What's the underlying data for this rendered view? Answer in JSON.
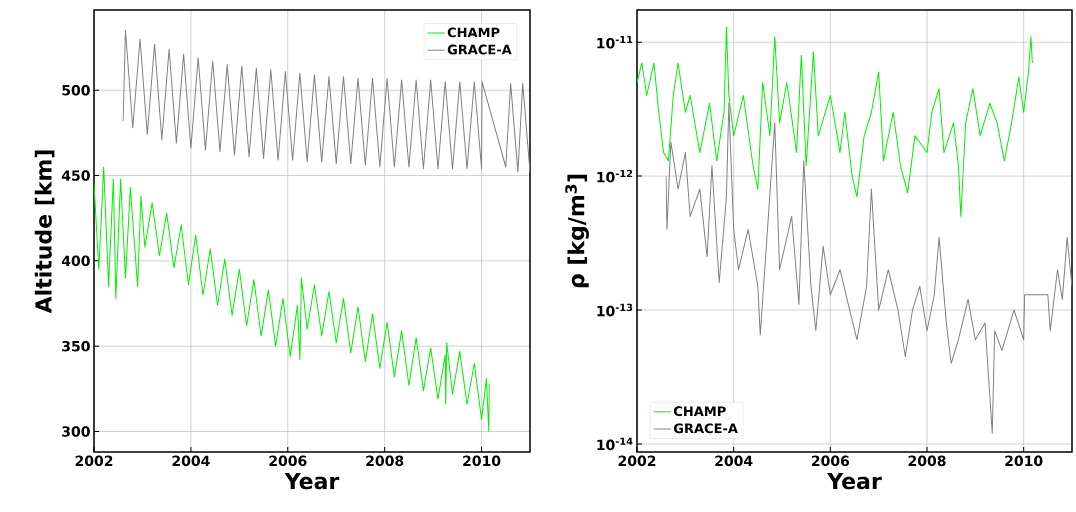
{
  "chart_data": [
    {
      "type": "line",
      "xlabel": "Year",
      "ylabel": "Altitude [km]",
      "xlim": [
        2002,
        2011
      ],
      "ylim": [
        288,
        547
      ],
      "xticks": [
        2002,
        2004,
        2006,
        2008,
        2010
      ],
      "yticks": [
        300,
        350,
        400,
        450,
        500
      ],
      "grid": true,
      "legend": "top right",
      "series": [
        {
          "name": "CHAMP",
          "color": "#00f000",
          "x": [
            2002.0,
            2002.1,
            2002.2,
            2002.3,
            2002.4,
            2002.45,
            2002.55,
            2002.65,
            2002.75,
            2002.9,
            2002.97,
            2003.05,
            2003.2,
            2003.35,
            2003.5,
            2003.65,
            2003.8,
            2003.95,
            2004.1,
            2004.25,
            2004.4,
            2004.55,
            2004.7,
            2004.85,
            2005.0,
            2005.15,
            2005.3,
            2005.45,
            2005.6,
            2005.75,
            2005.9,
            2006.05,
            2006.2,
            2006.25,
            2006.28,
            2006.4,
            2006.55,
            2006.7,
            2006.85,
            2007.0,
            2007.15,
            2007.3,
            2007.45,
            2007.6,
            2007.75,
            2007.9,
            2008.05,
            2008.2,
            2008.35,
            2008.5,
            2008.65,
            2008.8,
            2008.95,
            2009.1,
            2009.25,
            2009.26,
            2009.28,
            2009.4,
            2009.55,
            2009.7,
            2009.85,
            2010.0,
            2010.1,
            2010.15,
            2010.16
          ],
          "values": [
            445,
            395,
            455,
            385,
            448,
            378,
            448,
            390,
            443,
            385,
            438,
            408,
            434,
            403,
            428,
            396,
            421,
            386,
            415,
            380,
            407,
            374,
            401,
            368,
            395,
            362,
            389,
            356,
            383,
            350,
            378,
            344,
            374,
            342,
            390,
            360,
            386,
            356,
            382,
            352,
            378,
            346,
            373,
            341,
            369,
            337,
            364,
            332,
            359,
            327,
            355,
            324,
            349,
            319,
            345,
            316,
            352,
            322,
            347,
            316,
            340,
            307,
            331,
            300,
            328
          ]
        },
        {
          "name": "GRACE-A",
          "color": "#808080",
          "x": [
            2002.6,
            2002.65,
            2002.8,
            2002.95,
            2003.1,
            2003.25,
            2003.4,
            2003.55,
            2003.7,
            2003.85,
            2004.0,
            2004.15,
            2004.3,
            2004.45,
            2004.6,
            2004.75,
            2004.9,
            2005.05,
            2005.2,
            2005.35,
            2005.5,
            2005.65,
            2005.8,
            2005.95,
            2006.1,
            2006.25,
            2006.4,
            2006.55,
            2006.7,
            2006.85,
            2007.0,
            2007.15,
            2007.3,
            2007.45,
            2007.6,
            2007.75,
            2007.9,
            2008.05,
            2008.2,
            2008.35,
            2008.5,
            2008.65,
            2008.8,
            2008.95,
            2009.1,
            2009.25,
            2009.4,
            2009.55,
            2009.7,
            2009.85,
            2010.0,
            2010.01,
            2010.5,
            2010.6,
            2010.75,
            2010.85,
            2011.0
          ],
          "values": [
            482,
            535,
            478,
            530,
            474,
            527,
            471,
            524,
            469,
            521,
            466,
            519,
            465,
            517,
            464,
            515,
            462,
            514,
            461,
            513,
            460,
            512,
            459,
            511,
            459,
            510,
            458,
            509,
            458,
            508,
            457,
            508,
            457,
            507,
            456,
            507,
            455,
            507,
            455,
            506,
            455,
            506,
            454,
            506,
            454,
            505,
            454,
            505,
            454,
            505,
            454,
            505,
            455,
            504,
            452,
            504,
            452
          ]
        }
      ]
    },
    {
      "type": "line",
      "xlabel": "Year",
      "ylabel": "ρ [kg/m$^{3}$]",
      "log": "y",
      "xlim": [
        2002,
        2011
      ],
      "ylim": [
        8.7e-15,
        1.74e-11
      ],
      "xticks": [
        2002,
        2004,
        2006,
        2008,
        2010
      ],
      "yticks": [
        {
          "value": 1e-14,
          "label": "10$^{-14}$"
        },
        {
          "value": 1e-13,
          "label": "10$^{-13}$"
        },
        {
          "value": 1e-12,
          "label": "10$^{-12}$"
        },
        {
          "value": 1e-11,
          "label": "10$^{-11}$"
        }
      ],
      "grid": true,
      "legend": "bottom left",
      "series": [
        {
          "name": "CHAMP",
          "color": "#00f000",
          "x": [
            2002.0,
            2002.1,
            2002.2,
            2002.35,
            2002.45,
            2002.55,
            2002.65,
            2002.75,
            2002.85,
            2003.0,
            2003.1,
            2003.3,
            2003.5,
            2003.65,
            2003.8,
            2003.85,
            2003.9,
            2004.0,
            2004.2,
            2004.4,
            2004.5,
            2004.6,
            2004.75,
            2004.85,
            2004.95,
            2005.1,
            2005.3,
            2005.4,
            2005.5,
            2005.65,
            2005.75,
            2006.0,
            2006.2,
            2006.3,
            2006.45,
            2006.55,
            2006.7,
            2006.85,
            2007.0,
            2007.1,
            2007.3,
            2007.45,
            2007.6,
            2007.75,
            2008.0,
            2008.1,
            2008.25,
            2008.35,
            2008.55,
            2008.65,
            2008.7,
            2008.8,
            2008.95,
            2009.1,
            2009.3,
            2009.45,
            2009.6,
            2009.75,
            2009.9,
            2010.0,
            2010.1,
            2010.15,
            2010.18
          ],
          "values": [
            5e-12,
            7e-12,
            4e-12,
            7e-12,
            3e-12,
            1.5e-12,
            1.3e-12,
            4e-12,
            7e-12,
            3e-12,
            4e-12,
            1.5e-12,
            3.5e-12,
            1.3e-12,
            3e-12,
            1.3e-11,
            4e-12,
            2e-12,
            4e-12,
            1.2e-12,
            8e-13,
            5e-12,
            2e-12,
            1.1e-11,
            2.5e-12,
            5e-12,
            1.5e-12,
            8e-12,
            1.2e-12,
            8.5e-12,
            2e-12,
            4e-12,
            1.5e-12,
            3e-12,
            1e-12,
            7e-13,
            2e-12,
            3e-12,
            6e-12,
            1.3e-12,
            3e-12,
            1.2e-12,
            7.5e-13,
            2e-12,
            1.5e-12,
            3e-12,
            4.5e-12,
            1.5e-12,
            2.5e-12,
            1.2e-12,
            5e-13,
            2.5e-12,
            4.5e-12,
            2e-12,
            3.5e-12,
            2.5e-12,
            1.3e-12,
            2.5e-12,
            5.5e-12,
            3e-12,
            6e-12,
            1.1e-11,
            7e-12
          ]
        },
        {
          "name": "GRACE-A",
          "color": "#808080",
          "x": [
            2002.6,
            2002.62,
            2002.7,
            2002.85,
            2003.0,
            2003.1,
            2003.3,
            2003.45,
            2003.55,
            2003.7,
            2003.85,
            2003.9,
            2004.0,
            2004.1,
            2004.3,
            2004.5,
            2004.55,
            2004.7,
            2004.85,
            2004.95,
            2005.2,
            2005.35,
            2005.45,
            2005.6,
            2005.7,
            2005.85,
            2006.0,
            2006.2,
            2006.4,
            2006.55,
            2006.75,
            2006.85,
            2007.0,
            2007.2,
            2007.4,
            2007.55,
            2007.7,
            2007.85,
            2008.0,
            2008.15,
            2008.25,
            2008.4,
            2008.5,
            2008.65,
            2008.85,
            2009.0,
            2009.2,
            2009.35,
            2009.4,
            2009.55,
            2009.8,
            2010.0,
            2010.02,
            2010.5,
            2010.55,
            2010.7,
            2010.8,
            2010.9,
            2011.0
          ],
          "values": [
            1e-12,
            4e-13,
            1.8e-12,
            8e-13,
            1.5e-12,
            5e-13,
            8e-13,
            2.5e-13,
            1.2e-12,
            1.6e-13,
            7e-13,
            3.5e-12,
            4e-13,
            2e-13,
            4e-13,
            1.5e-13,
            6.5e-14,
            4e-13,
            2.5e-12,
            2e-13,
            5e-13,
            1.1e-13,
            1.3e-12,
            1.5e-13,
            7e-14,
            3e-13,
            1.3e-13,
            2e-13,
            1e-13,
            6e-14,
            1.5e-13,
            8e-13,
            1e-13,
            2e-13,
            1e-13,
            4.5e-14,
            1e-13,
            1.5e-13,
            7e-14,
            1.3e-13,
            3.5e-13,
            8e-14,
            4e-14,
            6e-14,
            1.2e-13,
            6e-14,
            8e-14,
            1.2e-14,
            7e-14,
            5e-14,
            1e-13,
            6e-14,
            1.3e-13,
            1.3e-13,
            7e-14,
            2e-13,
            1.2e-13,
            3.5e-13,
            1.5e-13
          ]
        }
      ]
    }
  ]
}
